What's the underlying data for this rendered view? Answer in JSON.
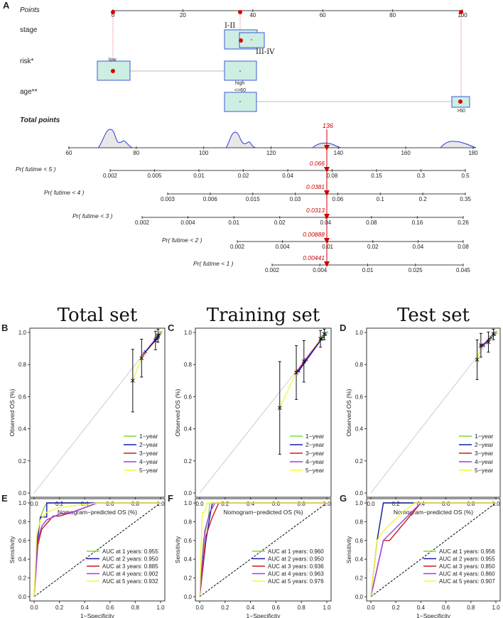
{
  "colors": {
    "box_fill": "#cdeee2",
    "box_stroke": "#3b5bd6",
    "point_red": "#d90000",
    "cum_red": "#cc0000",
    "density_stroke": "#2a3fd1",
    "density_fill": "#e8e8e8",
    "ideal_gray": "#cccccc",
    "diag_black": "#000000",
    "year1": "#7CDB3A",
    "year2": "#1a1aa8",
    "year3": "#d01a1a",
    "year4": "#9b3fe0",
    "year5": "#f5f542"
  },
  "nomogram": {
    "panel_label": "A",
    "points_label": "Points",
    "points_ticks": [
      "0",
      "20",
      "40",
      "60",
      "80",
      "100"
    ],
    "variables": [
      {
        "name": "stage",
        "levels": [
          {
            "label": "I-II"
          },
          {
            "label": "III-IV"
          }
        ]
      },
      {
        "name": "risk*",
        "levels": [
          {
            "label": "low"
          },
          {
            "label": "high"
          }
        ]
      },
      {
        "name": "age**",
        "levels": [
          {
            "label": "<=60"
          },
          {
            "label": ">60"
          }
        ]
      }
    ],
    "total_label": "Total points",
    "total_ticks": [
      "60",
      "80",
      "100",
      "120",
      "140",
      "160",
      "180"
    ],
    "total_value": "136",
    "prob_rows": [
      {
        "label": "Pr( futime < 5 )",
        "ticks": [
          "0.002",
          "0.005",
          "0.01",
          "0.02",
          "0.04",
          "0.08",
          "0.15",
          "0.3",
          "0.5"
        ],
        "marker": "0.066"
      },
      {
        "label": "Pr( futime < 4 )",
        "ticks": [
          "0.003",
          "0.006",
          "0.015",
          "0.03",
          "0.06",
          "0.1",
          "0.2",
          "0.35"
        ],
        "marker": "0.0381"
      },
      {
        "label": "Pr( futime < 3 )",
        "ticks": [
          "0.002",
          "0.004",
          "0.01",
          "0.02",
          "0.04",
          "0.08",
          "0.16",
          "0.26"
        ],
        "marker": "0.0313"
      },
      {
        "label": "Pr( futime < 2 )",
        "ticks": [
          "0.002",
          "0.004",
          "0.01",
          "0.02",
          "0.04",
          "0.08"
        ],
        "marker": "0.00888"
      },
      {
        "label": "Pr( futime < 1 )",
        "ticks": [
          "0.002",
          "0.004",
          "0.01",
          "0.025",
          "0.045"
        ],
        "marker": "0.00441"
      }
    ]
  },
  "chart_data": [
    {
      "panel": "B",
      "type": "line",
      "title": "Total set",
      "xlabel": "Nomogram−predicted OS (%)",
      "ylabel": "Observed OS (%)",
      "xlim": [
        0,
        1
      ],
      "ylim": [
        0,
        1
      ],
      "ticks": [
        "0.0",
        "0.2",
        "0.4",
        "0.6",
        "0.8",
        "1.0"
      ],
      "legend": [
        "1−year",
        "2−year",
        "3−year",
        "4−year",
        "5−year"
      ],
      "series": [
        {
          "name": "5-year",
          "x": [
            0.78,
            0.85,
            0.96,
            0.98
          ],
          "y": [
            0.7,
            0.84,
            0.95,
            0.98
          ]
        },
        {
          "name": "4-year",
          "x": [
            0.86,
            0.96,
            0.99
          ],
          "y": [
            0.86,
            0.96,
            0.99
          ]
        },
        {
          "name": "3-year",
          "x": [
            0.87,
            0.97,
            0.99
          ],
          "y": [
            0.87,
            0.96,
            0.99
          ]
        },
        {
          "name": "2-year",
          "x": [
            0.88,
            0.98,
            1.0
          ],
          "y": [
            0.88,
            0.97,
            1.0
          ]
        },
        {
          "name": "1-year",
          "x": [
            0.97,
            1.0
          ],
          "y": [
            0.98,
            1.0
          ]
        }
      ]
    },
    {
      "panel": "C",
      "type": "line",
      "title": "Training set",
      "xlabel": "Nomogram−predicted OS (%)",
      "ylabel": "Observed OS (%)",
      "xlim": [
        0,
        1
      ],
      "ylim": [
        0,
        1
      ],
      "ticks": [
        "0.0",
        "0.2",
        "0.4",
        "0.6",
        "0.8",
        "1.0"
      ],
      "legend": [
        "1−year",
        "2−year",
        "3−year",
        "4−year",
        "5−year"
      ],
      "series": [
        {
          "name": "5-year",
          "x": [
            0.63,
            0.76,
            0.82,
            0.95,
            0.98
          ],
          "y": [
            0.53,
            0.75,
            0.82,
            0.96,
            0.99
          ]
        },
        {
          "name": "4-year",
          "x": [
            0.76,
            0.83,
            0.96
          ],
          "y": [
            0.75,
            0.83,
            0.96
          ]
        },
        {
          "name": "3-year",
          "x": [
            0.77,
            0.84,
            0.97
          ],
          "y": [
            0.76,
            0.83,
            0.97
          ]
        },
        {
          "name": "2-year",
          "x": [
            0.78,
            0.96,
            0.99
          ],
          "y": [
            0.76,
            0.96,
            0.99
          ]
        },
        {
          "name": "1-year",
          "x": [
            0.96,
            1.0
          ],
          "y": [
            0.97,
            1.0
          ]
        }
      ]
    },
    {
      "panel": "D",
      "type": "line",
      "title": "Test set",
      "xlabel": "Nomogram−predicted OS (%)",
      "ylabel": "Observed OS (%)",
      "xlim": [
        0,
        1
      ],
      "ylim": [
        0,
        1
      ],
      "ticks": [
        "0.0",
        "0.2",
        "0.4",
        "0.6",
        "0.8",
        "1.0"
      ],
      "legend": [
        "1−year",
        "2−year",
        "3−year",
        "4−year",
        "5−year"
      ],
      "series": [
        {
          "name": "5-year",
          "x": [
            0.85,
            0.88,
            0.94,
            0.98
          ],
          "y": [
            0.83,
            0.92,
            0.94,
            0.99
          ]
        },
        {
          "name": "4-year",
          "x": [
            0.88,
            0.94,
            0.98
          ],
          "y": [
            0.91,
            0.95,
            0.99
          ]
        },
        {
          "name": "3-year",
          "x": [
            0.89,
            0.95,
            0.99
          ],
          "y": [
            0.92,
            0.96,
            0.99
          ]
        },
        {
          "name": "2-year",
          "x": [
            0.9,
            0.96,
            1.0
          ],
          "y": [
            0.92,
            0.97,
            1.0
          ]
        },
        {
          "name": "1-year",
          "x": [
            0.97,
            1.0
          ],
          "y": [
            0.98,
            1.0
          ]
        }
      ]
    },
    {
      "panel": "E",
      "type": "line",
      "title": "",
      "xlabel": "1−Specificity",
      "ylabel": "Sensitivity",
      "xlim": [
        0,
        1
      ],
      "ylim": [
        0,
        1
      ],
      "ticks": [
        "0.0",
        "0.2",
        "0.4",
        "0.6",
        "0.8",
        "1.0"
      ],
      "auc_labels": [
        "AUC at 1 years: 0.955",
        "AUC at 2 years: 0.950",
        "AUC at 3 years: 0.885",
        "AUC at 4 years: 0.902",
        "AUC at 5 years: 0.932"
      ],
      "series": [
        {
          "name": "1-year",
          "x": [
            0,
            0.02,
            0.05,
            0.08,
            0.1,
            1
          ],
          "y": [
            0,
            0.5,
            0.85,
            0.95,
            1,
            1
          ]
        },
        {
          "name": "2-year",
          "x": [
            0,
            0.02,
            0.05,
            0.1,
            0.1,
            1
          ],
          "y": [
            0,
            0.55,
            0.85,
            0.85,
            1,
            1
          ]
        },
        {
          "name": "3-year",
          "x": [
            0,
            0.03,
            0.06,
            0.1,
            0.15,
            0.2,
            0.3,
            0.5,
            1
          ],
          "y": [
            0,
            0.55,
            0.72,
            0.78,
            0.86,
            0.86,
            0.9,
            1,
            1
          ]
        },
        {
          "name": "4-year",
          "x": [
            0,
            0.03,
            0.06,
            0.1,
            0.2,
            0.3,
            0.5,
            1
          ],
          "y": [
            0,
            0.6,
            0.75,
            0.82,
            0.88,
            0.9,
            1,
            1
          ]
        },
        {
          "name": "5-year",
          "x": [
            0,
            0.02,
            0.05,
            0.1,
            0.2,
            0.5,
            1
          ],
          "y": [
            0,
            0.65,
            0.82,
            0.9,
            0.95,
            1,
            1
          ]
        }
      ]
    },
    {
      "panel": "F",
      "type": "line",
      "title": "",
      "xlabel": "1−Specificity",
      "ylabel": "Sensitivity",
      "xlim": [
        0,
        1
      ],
      "ylim": [
        0,
        1
      ],
      "ticks": [
        "0.0",
        "0.2",
        "0.4",
        "0.6",
        "0.8",
        "1.0"
      ],
      "auc_labels": [
        "AUC at 1 years: 0.960",
        "AUC at 2 years: 0.950",
        "AUC at 3 years: 0.936",
        "AUC at 4 years: 0.963",
        "AUC at 5 years: 0.976"
      ],
      "series": [
        {
          "name": "1-year",
          "x": [
            0,
            0.03,
            0.07,
            0.08,
            1
          ],
          "y": [
            0,
            0.6,
            0.85,
            1,
            1
          ]
        },
        {
          "name": "2-year",
          "x": [
            0,
            0.05,
            0.08,
            0.1,
            1
          ],
          "y": [
            0,
            0.6,
            0.85,
            1,
            1
          ]
        },
        {
          "name": "3-year",
          "x": [
            0,
            0.05,
            0.1,
            0.15,
            1
          ],
          "y": [
            0,
            0.65,
            0.85,
            1,
            1
          ]
        },
        {
          "name": "4-year",
          "x": [
            0,
            0.04,
            0.08,
            0.12,
            1
          ],
          "y": [
            0,
            0.7,
            0.9,
            1,
            1
          ]
        },
        {
          "name": "5-year",
          "x": [
            0,
            0.02,
            0.04,
            0.06,
            1
          ],
          "y": [
            0,
            0.9,
            0.9,
            1,
            1
          ]
        }
      ]
    },
    {
      "panel": "G",
      "type": "line",
      "title": "",
      "xlabel": "1−Specificity",
      "ylabel": "Sensitivity",
      "xlim": [
        0,
        1
      ],
      "ylim": [
        0,
        1
      ],
      "ticks": [
        "0.0",
        "0.2",
        "0.4",
        "0.6",
        "0.8",
        "1.0"
      ],
      "auc_labels": [
        "AUC at 1 years: 0.956",
        "AUC at 2 years: 0.955",
        "AUC at 3 years: 0.850",
        "AUC at 4 years: 0.860",
        "AUC at 5 years: 0.907"
      ],
      "series": [
        {
          "name": "1-year",
          "x": [
            0,
            0.05,
            0.1,
            1
          ],
          "y": [
            0,
            0.6,
            1,
            1
          ]
        },
        {
          "name": "2-year",
          "x": [
            0,
            0.05,
            0.1,
            0.4,
            1
          ],
          "y": [
            0,
            0.6,
            1,
            1,
            1
          ]
        },
        {
          "name": "3-year",
          "x": [
            0,
            0.1,
            0.15,
            0.4,
            1
          ],
          "y": [
            0,
            0.6,
            0.6,
            1,
            1
          ]
        },
        {
          "name": "4-year",
          "x": [
            0,
            0.1,
            0.4,
            1
          ],
          "y": [
            0,
            0.6,
            1,
            1
          ]
        },
        {
          "name": "5-year",
          "x": [
            0,
            0.05,
            0.1,
            0.25,
            0.35,
            1
          ],
          "y": [
            0,
            0.6,
            0.7,
            0.9,
            1,
            1
          ]
        }
      ]
    }
  ]
}
